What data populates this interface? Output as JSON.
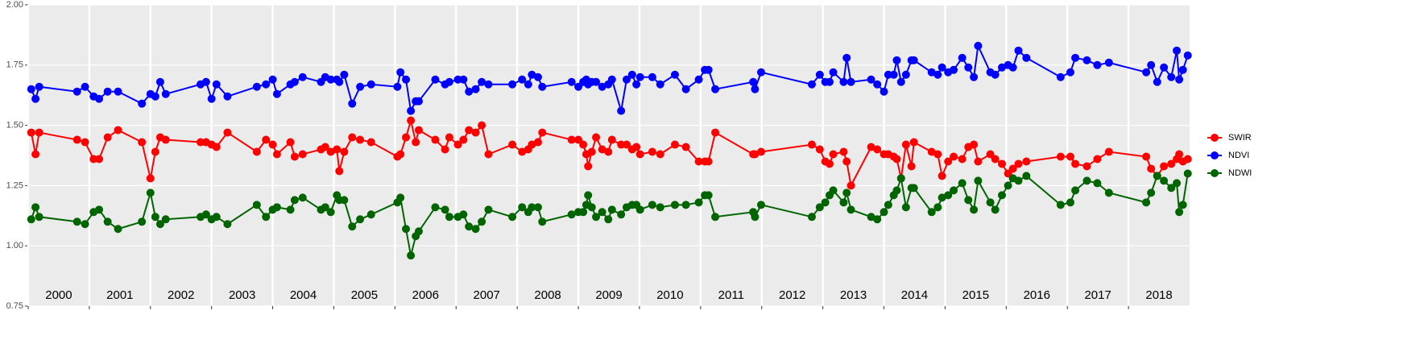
{
  "chart_data": {
    "type": "line",
    "x": [
      2000.05,
      2000.12,
      2000.18,
      2000.8,
      2000.93,
      2001.07,
      2001.16,
      2001.3,
      2001.47,
      2001.86,
      2002.0,
      2002.08,
      2002.16,
      2002.25,
      2002.82,
      2002.91,
      2003.0,
      2003.08,
      2003.26,
      2003.74,
      2003.89,
      2004.0,
      2004.07,
      2004.29,
      2004.36,
      2004.49,
      2004.79,
      2004.86,
      2004.95,
      2005.05,
      2005.09,
      2005.17,
      2005.3,
      2005.43,
      2005.61,
      2006.04,
      2006.09,
      2006.18,
      2006.26,
      2006.34,
      2006.39,
      2006.66,
      2006.82,
      2006.89,
      2007.03,
      2007.12,
      2007.21,
      2007.32,
      2007.42,
      2007.53,
      2007.92,
      2008.08,
      2008.18,
      2008.24,
      2008.34,
      2008.41,
      2008.89,
      2009.0,
      2009.08,
      2009.13,
      2009.16,
      2009.22,
      2009.29,
      2009.39,
      2009.49,
      2009.55,
      2009.7,
      2009.79,
      2009.88,
      2009.95,
      2010.01,
      2010.21,
      2010.34,
      2010.58,
      2010.76,
      2010.97,
      2011.07,
      2011.13,
      2011.24,
      2011.86,
      2011.89,
      2011.99,
      2012.82,
      2012.95,
      2013.04,
      2013.11,
      2013.17,
      2013.34,
      2013.39,
      2013.46,
      2013.79,
      2013.89,
      2014.0,
      2014.07,
      2014.16,
      2014.21,
      2014.28,
      2014.36,
      2014.45,
      2014.49,
      2014.78,
      2014.88,
      2014.95,
      2015.05,
      2015.14,
      2015.28,
      2015.38,
      2015.47,
      2015.54,
      2015.74,
      2015.82,
      2015.93,
      2016.03,
      2016.11,
      2016.2,
      2016.33,
      2016.89,
      2017.05,
      2017.13,
      2017.32,
      2017.49,
      2017.68,
      2018.29,
      2018.37,
      2018.47,
      2018.58,
      2018.7,
      2018.79,
      2018.83,
      2018.89,
      2018.97
    ],
    "series": [
      {
        "name": "SWIR",
        "color": "#ff0000",
        "values": [
          1.47,
          1.38,
          1.47,
          1.44,
          1.43,
          1.36,
          1.36,
          1.45,
          1.48,
          1.43,
          1.28,
          1.39,
          1.45,
          1.44,
          1.43,
          1.43,
          1.42,
          1.41,
          1.47,
          1.39,
          1.44,
          1.42,
          1.38,
          1.43,
          1.37,
          1.38,
          1.4,
          1.41,
          1.39,
          1.4,
          1.31,
          1.39,
          1.45,
          1.44,
          1.43,
          1.37,
          1.38,
          1.45,
          1.52,
          1.43,
          1.48,
          1.44,
          1.4,
          1.45,
          1.42,
          1.44,
          1.48,
          1.47,
          1.5,
          1.38,
          1.42,
          1.39,
          1.4,
          1.42,
          1.43,
          1.47,
          1.44,
          1.44,
          1.42,
          1.38,
          1.33,
          1.39,
          1.45,
          1.4,
          1.39,
          1.44,
          1.42,
          1.42,
          1.4,
          1.41,
          1.38,
          1.39,
          1.38,
          1.42,
          1.41,
          1.35,
          1.35,
          1.35,
          1.47,
          1.38,
          1.38,
          1.39,
          1.42,
          1.4,
          1.35,
          1.34,
          1.38,
          1.39,
          1.35,
          1.25,
          1.41,
          1.4,
          1.38,
          1.38,
          1.37,
          1.36,
          1.28,
          1.42,
          1.33,
          1.43,
          1.39,
          1.38,
          1.29,
          1.35,
          1.37,
          1.36,
          1.41,
          1.42,
          1.35,
          1.38,
          1.36,
          1.34,
          1.3,
          1.32,
          1.34,
          1.35,
          1.37,
          1.37,
          1.34,
          1.33,
          1.36,
          1.39,
          1.37,
          1.32,
          1.29,
          1.33,
          1.34,
          1.36,
          1.38,
          1.35,
          1.36
        ]
      },
      {
        "name": "NDVI",
        "color": "#0000ff",
        "values": [
          1.65,
          1.61,
          1.66,
          1.64,
          1.66,
          1.62,
          1.61,
          1.64,
          1.64,
          1.59,
          1.63,
          1.62,
          1.68,
          1.63,
          1.67,
          1.68,
          1.61,
          1.67,
          1.62,
          1.66,
          1.67,
          1.69,
          1.63,
          1.67,
          1.68,
          1.7,
          1.68,
          1.7,
          1.69,
          1.69,
          1.68,
          1.71,
          1.59,
          1.66,
          1.67,
          1.66,
          1.72,
          1.69,
          1.56,
          1.6,
          1.6,
          1.69,
          1.67,
          1.68,
          1.69,
          1.69,
          1.64,
          1.65,
          1.68,
          1.67,
          1.67,
          1.69,
          1.67,
          1.71,
          1.7,
          1.66,
          1.68,
          1.66,
          1.68,
          1.69,
          1.67,
          1.68,
          1.68,
          1.66,
          1.67,
          1.69,
          1.56,
          1.69,
          1.71,
          1.67,
          1.7,
          1.7,
          1.67,
          1.71,
          1.65,
          1.69,
          1.73,
          1.73,
          1.65,
          1.68,
          1.65,
          1.72,
          1.67,
          1.71,
          1.68,
          1.68,
          1.72,
          1.68,
          1.78,
          1.68,
          1.69,
          1.67,
          1.64,
          1.71,
          1.71,
          1.77,
          1.68,
          1.71,
          1.77,
          1.77,
          1.72,
          1.71,
          1.74,
          1.72,
          1.73,
          1.78,
          1.74,
          1.7,
          1.83,
          1.72,
          1.71,
          1.74,
          1.75,
          1.74,
          1.81,
          1.78,
          1.7,
          1.72,
          1.78,
          1.77,
          1.75,
          1.76,
          1.72,
          1.75,
          1.68,
          1.74,
          1.7,
          1.81,
          1.69,
          1.73,
          1.79
        ]
      },
      {
        "name": "NDWI",
        "color": "#006400",
        "values": [
          1.11,
          1.16,
          1.12,
          1.1,
          1.09,
          1.14,
          1.15,
          1.1,
          1.07,
          1.1,
          1.22,
          1.12,
          1.09,
          1.11,
          1.12,
          1.13,
          1.11,
          1.12,
          1.09,
          1.17,
          1.12,
          1.15,
          1.16,
          1.15,
          1.19,
          1.2,
          1.15,
          1.16,
          1.14,
          1.21,
          1.19,
          1.19,
          1.08,
          1.11,
          1.13,
          1.18,
          1.2,
          1.07,
          0.96,
          1.04,
          1.06,
          1.16,
          1.15,
          1.12,
          1.12,
          1.13,
          1.08,
          1.07,
          1.1,
          1.15,
          1.12,
          1.16,
          1.14,
          1.16,
          1.16,
          1.1,
          1.13,
          1.14,
          1.14,
          1.17,
          1.21,
          1.16,
          1.12,
          1.14,
          1.11,
          1.15,
          1.13,
          1.16,
          1.17,
          1.17,
          1.15,
          1.17,
          1.16,
          1.17,
          1.17,
          1.18,
          1.21,
          1.21,
          1.12,
          1.14,
          1.12,
          1.17,
          1.12,
          1.16,
          1.18,
          1.21,
          1.23,
          1.18,
          1.22,
          1.15,
          1.12,
          1.11,
          1.14,
          1.17,
          1.21,
          1.23,
          1.28,
          1.16,
          1.24,
          1.24,
          1.14,
          1.16,
          1.2,
          1.21,
          1.23,
          1.26,
          1.19,
          1.15,
          1.27,
          1.18,
          1.15,
          1.21,
          1.25,
          1.28,
          1.27,
          1.29,
          1.17,
          1.18,
          1.23,
          1.27,
          1.26,
          1.22,
          1.18,
          1.22,
          1.29,
          1.27,
          1.24,
          1.26,
          1.14,
          1.17,
          1.3
        ]
      }
    ],
    "xlim": [
      2000,
      2019
    ],
    "xticks": [
      2000,
      2001,
      2002,
      2003,
      2004,
      2005,
      2006,
      2007,
      2008,
      2009,
      2010,
      2011,
      2012,
      2013,
      2014,
      2015,
      2016,
      2017,
      2018
    ],
    "ylim": [
      0.75,
      2.0
    ],
    "yticks": [
      {
        "value": 0.75,
        "label": "0.75"
      },
      {
        "value": 1.0,
        "label": "1.00"
      },
      {
        "value": 1.25,
        "label": "1.25"
      },
      {
        "value": 1.5,
        "label": "1.50"
      },
      {
        "value": 1.75,
        "label": "1.75"
      },
      {
        "value": 2.0,
        "label": "2.00"
      }
    ],
    "grid": true,
    "legend": "right"
  }
}
